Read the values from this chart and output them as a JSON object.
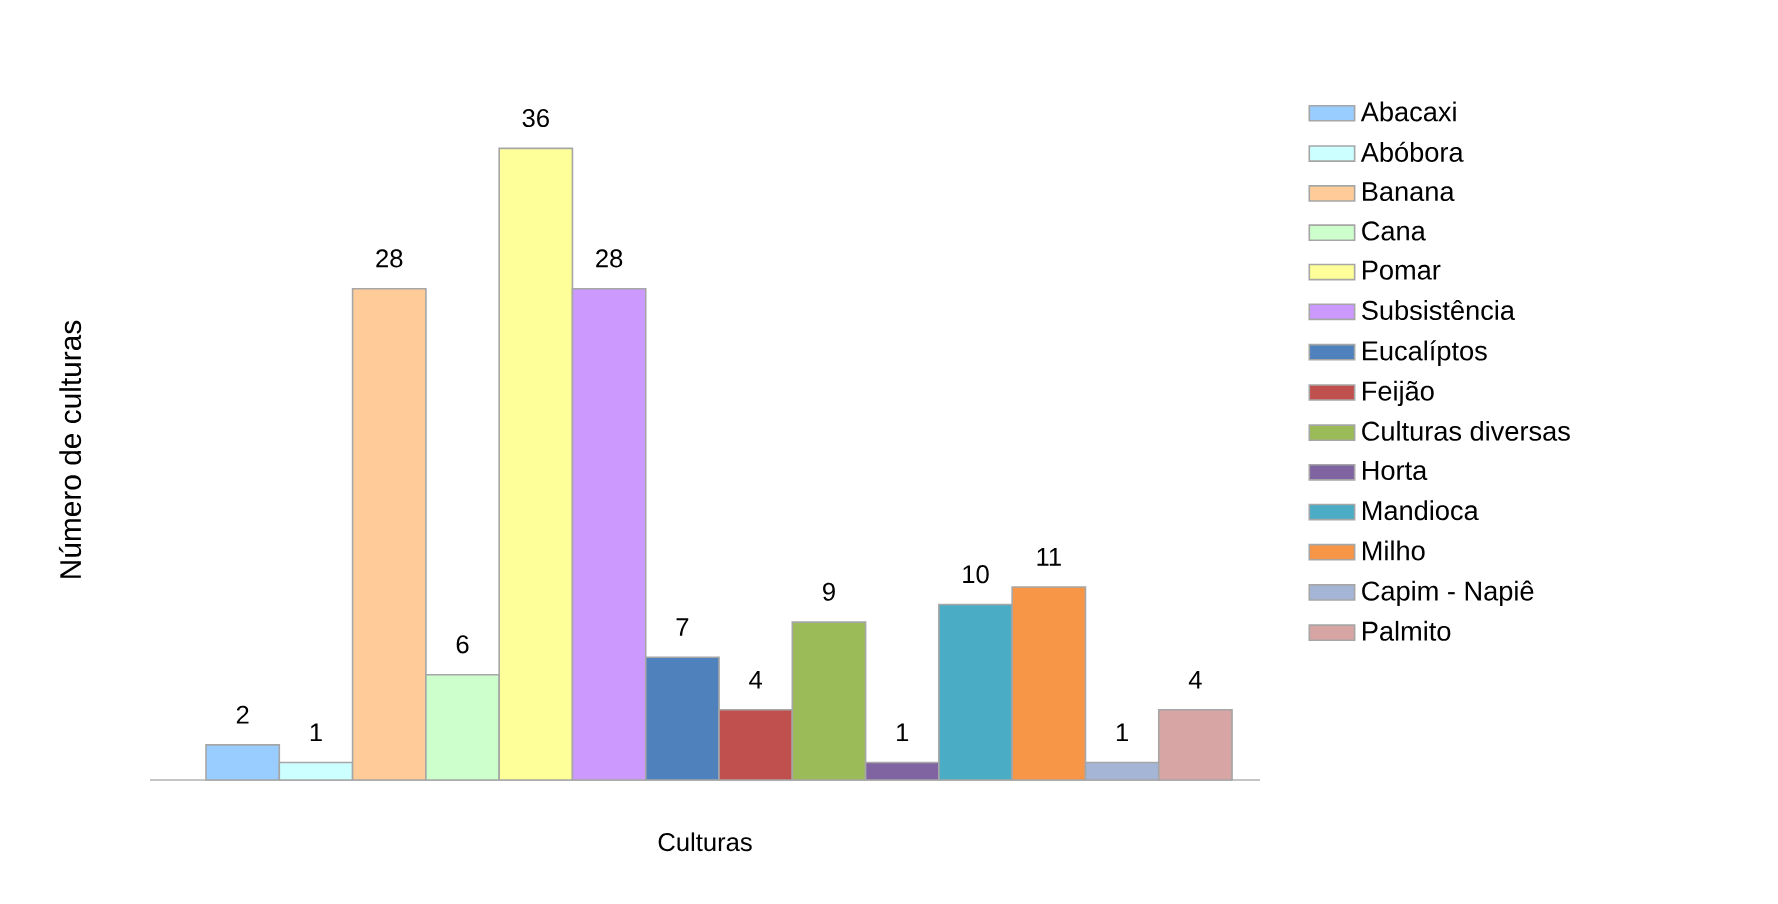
{
  "chart_data": {
    "type": "bar",
    "xlabel": "Culturas",
    "ylabel": "Número de culturas",
    "categories": [
      null
    ],
    "data_labels": true,
    "legend": "right",
    "series": [
      {
        "name": "Abacaxi",
        "color": "#99ccff",
        "values": [
          2
        ]
      },
      {
        "name": "Abóbora",
        "color": "#ccffff",
        "values": [
          1
        ]
      },
      {
        "name": "Banana",
        "color": "#ffcc99",
        "values": [
          28
        ]
      },
      {
        "name": "Cana",
        "color": "#ccffcc",
        "values": [
          6
        ]
      },
      {
        "name": "Pomar",
        "color": "#ffff99",
        "values": [
          36
        ]
      },
      {
        "name": "Subsistência",
        "color": "#cc99ff",
        "values": [
          28
        ]
      },
      {
        "name": "Eucalíptos",
        "color": "#4f81bd",
        "values": [
          7
        ]
      },
      {
        "name": "Feijão",
        "color": "#c0504d",
        "values": [
          4
        ]
      },
      {
        "name": "Culturas diversas",
        "color": "#9bbb59",
        "values": [
          9
        ]
      },
      {
        "name": "Horta",
        "color": "#8064a2",
        "values": [
          1
        ]
      },
      {
        "name": "Mandioca",
        "color": "#4bacc6",
        "values": [
          10
        ]
      },
      {
        "name": "Milho",
        "color": "#f79646",
        "values": [
          11
        ]
      },
      {
        "name": "Capim - Napiê",
        "color": "#a5b5d5",
        "values": [
          1
        ]
      },
      {
        "name": "Palmito",
        "color": "#d8a5a5",
        "values": [
          4
        ]
      }
    ]
  }
}
